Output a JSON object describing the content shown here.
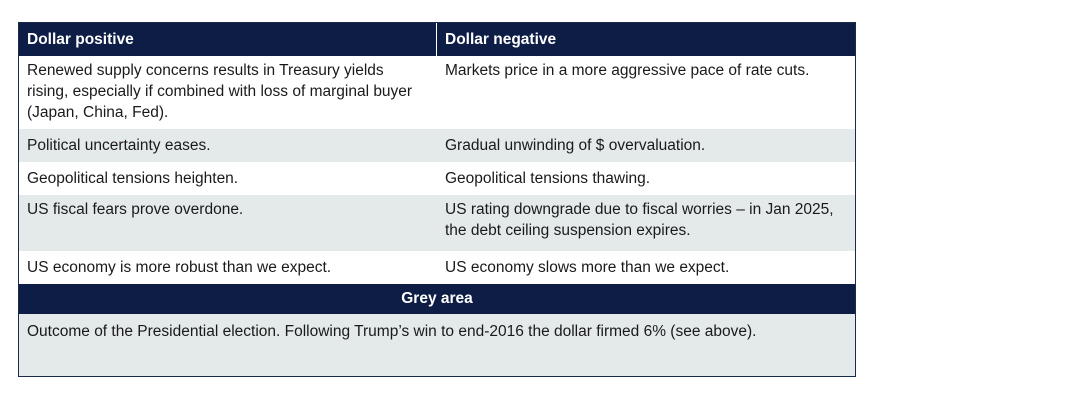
{
  "table": {
    "header": {
      "left": "Dollar positive",
      "right": "Dollar negative"
    },
    "rows": [
      {
        "left": "Renewed supply concerns results in Treasury yields rising, especially if combined with loss of marginal buyer (Japan, China, Fed).",
        "right": "Markets price in a more aggressive pace of rate cuts."
      },
      {
        "left": "Political uncertainty eases.",
        "right": "Gradual unwinding of $ overvaluation."
      },
      {
        "left": "Geopolitical tensions heighten.",
        "right": "Geopolitical tensions thawing."
      },
      {
        "left": "US fiscal fears prove overdone.",
        "right": "US rating downgrade due to fiscal worries – in Jan 2025, the debt ceiling suspension expires."
      },
      {
        "left": "US economy is more robust than we expect.",
        "right": "US economy slows more than we expect."
      }
    ],
    "grey_area": {
      "title": "Grey area",
      "text": "Outcome of the Presidential election. Following Trump’s win to end-2016 the dollar firmed 6% (see above)."
    }
  },
  "colors": {
    "header_bg": "#0e1d45",
    "stripe_bg": "#e4e9ea"
  }
}
